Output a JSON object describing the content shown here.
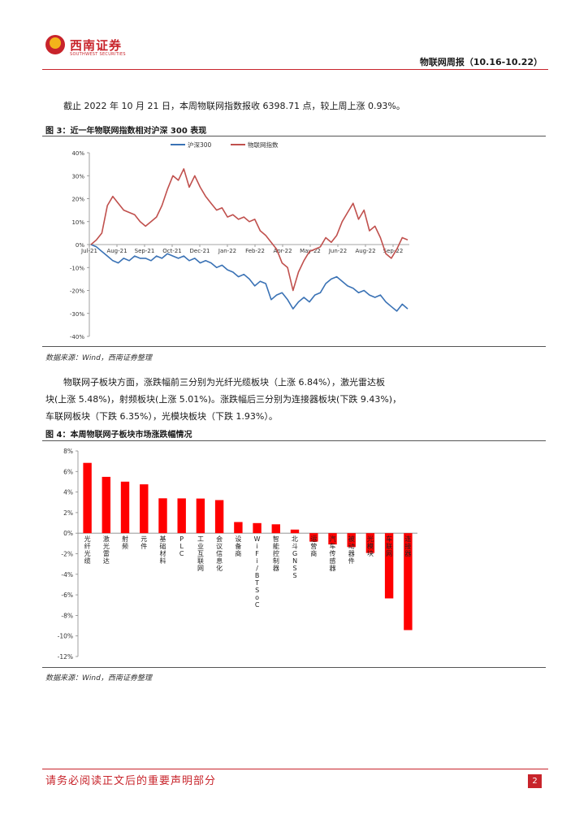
{
  "header": {
    "logo_name": "西南证券",
    "logo_sub": "SOUTHWEST SECURITIES",
    "report_title": "物联网周报（10.16-10.22）"
  },
  "body": {
    "para1": "截止 2022 年 10 月 21 日，本周物联网指数报收 6398.71 点，较上周上涨 0.93%。",
    "para2_line1": "物联网子板块方面，涨跌幅前三分别为光纤光缆板块（上涨 6.84%），激光雷达板",
    "para2_line2": "块(上涨 5.48%)，射频板块(上涨 5.01%)。涨跌幅后三分别为连接器板块(下跌 9.43%)，",
    "para2_line3": "车联网板块（下跌 6.35%），光模块板块（下跌 1.93%）。"
  },
  "figure3": {
    "title": "图 3：近一年物联网指数相对沪深 300 表现",
    "source": "数据来源：Wind，西南证券整理"
  },
  "figure4": {
    "title": "图 4：本周物联网子板块市场涨跌幅情况",
    "source": "数据来源：Wind，西南证券整理"
  },
  "footer": {
    "disclaimer": "请务必阅读正文后的重要声明部分",
    "page": "2"
  },
  "colors": {
    "brand": "#c8242b",
    "series_hs300": "#3a72b5",
    "series_iot": "#c0504d",
    "bar": "#ff0000"
  },
  "chart_data": [
    {
      "type": "line",
      "legend": [
        "沪深300",
        "物联网指数"
      ],
      "legend_position": "top-center",
      "x_ticks": [
        "Jul-21",
        "Aug-21",
        "Sep-21",
        "Oct-21",
        "Dec-21",
        "Jan-22",
        "Feb-22",
        "Apr-22",
        "May-22",
        "Jun-22",
        "Aug-22",
        "Sep-22"
      ],
      "ylim": [
        -0.4,
        0.4
      ],
      "y_ticks": [
        "40%",
        "30%",
        "20%",
        "10%",
        "0%",
        "-10%",
        "-20%",
        "-30%",
        "-40%"
      ],
      "grid": false,
      "series": [
        {
          "name": "沪深300",
          "values": [
            0,
            -0.01,
            -0.03,
            -0.05,
            -0.07,
            -0.08,
            -0.06,
            -0.07,
            -0.05,
            -0.06,
            -0.06,
            -0.07,
            -0.05,
            -0.06,
            -0.04,
            -0.05,
            -0.06,
            -0.05,
            -0.07,
            -0.06,
            -0.08,
            -0.07,
            -0.08,
            -0.1,
            -0.09,
            -0.11,
            -0.12,
            -0.14,
            -0.13,
            -0.15,
            -0.18,
            -0.16,
            -0.17,
            -0.24,
            -0.22,
            -0.21,
            -0.24,
            -0.28,
            -0.25,
            -0.23,
            -0.25,
            -0.22,
            -0.21,
            -0.17,
            -0.15,
            -0.14,
            -0.16,
            -0.18,
            -0.19,
            -0.21,
            -0.2,
            -0.22,
            -0.23,
            -0.22,
            -0.25,
            -0.27,
            -0.29,
            -0.26,
            -0.28
          ]
        },
        {
          "name": "物联网指数",
          "values": [
            0,
            0.02,
            0.05,
            0.17,
            0.21,
            0.18,
            0.15,
            0.14,
            0.13,
            0.1,
            0.08,
            0.1,
            0.12,
            0.17,
            0.24,
            0.3,
            0.28,
            0.33,
            0.25,
            0.3,
            0.25,
            0.21,
            0.18,
            0.15,
            0.16,
            0.12,
            0.13,
            0.11,
            0.12,
            0.1,
            0.11,
            0.06,
            0.04,
            0.01,
            -0.02,
            -0.08,
            -0.1,
            -0.2,
            -0.12,
            -0.07,
            -0.03,
            -0.02,
            -0.01,
            0.03,
            0.01,
            0.04,
            0.1,
            0.14,
            0.18,
            0.11,
            0.15,
            0.06,
            0.08,
            0.03,
            -0.04,
            -0.06,
            -0.02,
            0.03,
            0.02
          ]
        }
      ]
    },
    {
      "type": "bar",
      "categories": [
        "光纤光缆",
        "激光雷达",
        "射频",
        "元件",
        "基础材料",
        "PLC",
        "工业互联网",
        "会议信息化",
        "设备商",
        "WiFi/BT SoC",
        "智能控制器",
        "北斗GNSS",
        "运营商",
        "汽车传感器",
        "被动器件",
        "光模块",
        "车联网",
        "连接器"
      ],
      "values": [
        6.84,
        5.48,
        5.01,
        4.75,
        3.39,
        3.38,
        3.37,
        3.22,
        1.08,
        0.98,
        0.86,
        0.35,
        -0.82,
        -1.1,
        -1.35,
        -1.93,
        -6.35,
        -9.43
      ],
      "unit": "%",
      "ylim": [
        -12,
        8
      ],
      "y_ticks": [
        "8%",
        "6%",
        "4%",
        "2%",
        "0%",
        "-2%",
        "-4%",
        "-6%",
        "-8%",
        "-10%",
        "-12%"
      ],
      "grid": false
    }
  ]
}
